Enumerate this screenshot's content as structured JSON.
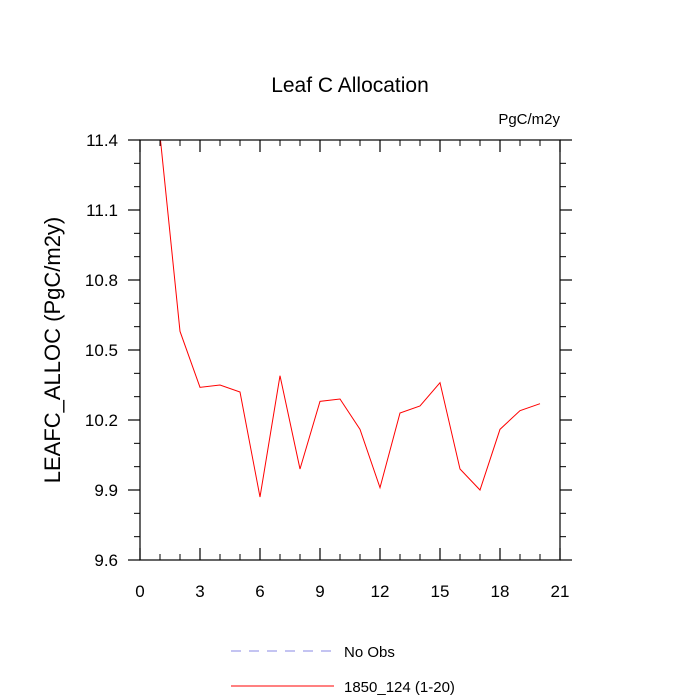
{
  "chart_data": {
    "type": "line",
    "title": "Leaf C Allocation",
    "units_label": "PgC/m2y",
    "xlabel": "",
    "ylabel": "LEAFC_ALLOC  (PgC/m2y)",
    "xlim": [
      0,
      21
    ],
    "ylim": [
      9.6,
      11.4
    ],
    "x_ticks": [
      0,
      3,
      6,
      9,
      12,
      15,
      18,
      21
    ],
    "x_tick_labels": [
      "0",
      "3",
      "6",
      "9",
      "12",
      "15",
      "18",
      "21"
    ],
    "y_ticks": [
      9.6,
      9.9,
      10.2,
      10.5,
      10.8,
      11.1,
      11.4
    ],
    "y_tick_labels": [
      "9.6",
      "9.9",
      "10.2",
      "10.5",
      "10.8",
      "11.1",
      "11.4"
    ],
    "grid": false,
    "legend_position": "bottom",
    "series": [
      {
        "name": "No Obs",
        "color": "#8a8ae6",
        "style": "dashed",
        "x": [],
        "y": []
      },
      {
        "name": "1850_124 (1-20)",
        "color": "#ff0000",
        "style": "solid",
        "x": [
          1,
          2,
          3,
          4,
          5,
          6,
          7,
          8,
          9,
          10,
          11,
          12,
          13,
          14,
          15,
          16,
          17,
          18,
          19,
          20
        ],
        "y": [
          11.42,
          10.58,
          10.34,
          10.35,
          10.32,
          9.87,
          10.39,
          9.99,
          10.28,
          10.29,
          10.16,
          9.91,
          10.23,
          10.26,
          10.36,
          9.99,
          9.9,
          10.16,
          10.24,
          10.27
        ]
      }
    ]
  }
}
